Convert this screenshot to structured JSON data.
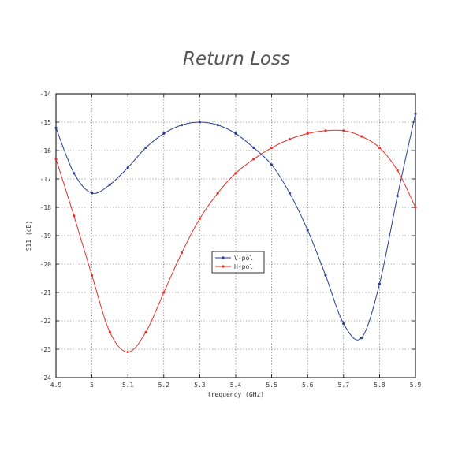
{
  "chart_data": {
    "type": "line",
    "title": "Return Loss",
    "xlabel": "frequency (GHz)",
    "ylabel": "S11 (dB)",
    "xlim": [
      4.9,
      5.9
    ],
    "ylim": [
      -24,
      -14
    ],
    "grid": true,
    "legend_position": "center",
    "x_ticks": [
      "4.9",
      "5",
      "5.1",
      "5.2",
      "5.3",
      "5.4",
      "5.5",
      "5.6",
      "5.7",
      "5.8",
      "5.9"
    ],
    "y_ticks": [
      "-14",
      "-15",
      "-16",
      "-17",
      "-18",
      "-19",
      "-20",
      "-21",
      "-22",
      "-23",
      "-24"
    ],
    "x": [
      4.9,
      4.95,
      5.0,
      5.05,
      5.1,
      5.15,
      5.2,
      5.25,
      5.3,
      5.35,
      5.4,
      5.45,
      5.5,
      5.55,
      5.6,
      5.65,
      5.7,
      5.75,
      5.8,
      5.85,
      5.9
    ],
    "series": [
      {
        "name": "V-pol",
        "color": "#2a3f8f",
        "values": [
          -15.2,
          -16.8,
          -17.5,
          -17.2,
          -16.6,
          -15.9,
          -15.4,
          -15.1,
          -15.0,
          -15.1,
          -15.4,
          -15.9,
          -16.5,
          -17.5,
          -18.8,
          -20.4,
          -22.1,
          -22.6,
          -20.7,
          -17.6,
          -14.7
        ]
      },
      {
        "name": "H-pol",
        "color": "#e8312a",
        "values": [
          -16.3,
          -18.3,
          -20.4,
          -22.4,
          -23.1,
          -22.4,
          -21.0,
          -19.6,
          -18.4,
          -17.5,
          -16.8,
          -16.3,
          -15.9,
          -15.6,
          -15.4,
          -15.3,
          -15.3,
          -15.5,
          -15.9,
          -16.7,
          -18.0
        ]
      }
    ]
  }
}
